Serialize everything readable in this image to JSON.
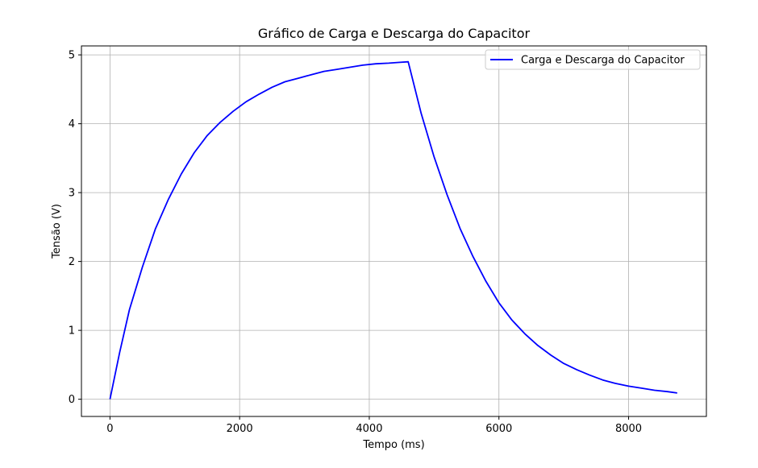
{
  "chart_data": {
    "type": "line",
    "title": "Gráfico de Carga e Descarga do Capacitor",
    "xlabel": "Tempo (ms)",
    "ylabel": "Tensão (V)",
    "xlim": [
      -440,
      9200
    ],
    "ylim": [
      -0.25,
      5.13
    ],
    "xticks": [
      0,
      2000,
      4000,
      6000,
      8000
    ],
    "yticks": [
      0,
      1,
      2,
      3,
      4,
      5
    ],
    "grid": true,
    "legend_position": "top-right",
    "series": [
      {
        "name": "Carga e Descarga do Capacitor",
        "color": "#0000ff",
        "x": [
          0,
          150,
          300,
          500,
          700,
          900,
          1100,
          1300,
          1500,
          1700,
          1900,
          2100,
          2300,
          2500,
          2700,
          2900,
          3100,
          3300,
          3500,
          3700,
          3900,
          4100,
          4300,
          4450,
          4600,
          4800,
          5000,
          5200,
          5400,
          5600,
          5800,
          6000,
          6200,
          6400,
          6600,
          6800,
          7000,
          7200,
          7400,
          7600,
          7800,
          8000,
          8200,
          8400,
          8600,
          8750
        ],
        "y": [
          0,
          0.68,
          1.3,
          1.92,
          2.47,
          2.9,
          3.27,
          3.58,
          3.83,
          4.02,
          4.18,
          4.32,
          4.43,
          4.53,
          4.61,
          4.66,
          4.71,
          4.76,
          4.79,
          4.82,
          4.85,
          4.87,
          4.88,
          4.89,
          4.9,
          4.15,
          3.52,
          2.97,
          2.48,
          2.07,
          1.71,
          1.4,
          1.15,
          0.95,
          0.78,
          0.64,
          0.52,
          0.43,
          0.35,
          0.28,
          0.23,
          0.19,
          0.16,
          0.13,
          0.11,
          0.09
        ]
      }
    ]
  }
}
